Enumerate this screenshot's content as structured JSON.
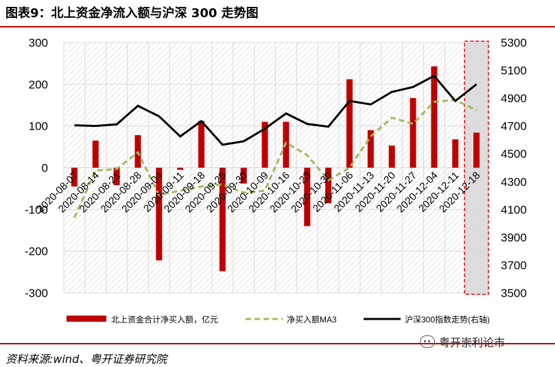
{
  "header": {
    "title": "图表9：北上资金净流入额与沪深 300 走势图"
  },
  "footer": {
    "source": "资料来源:wind、粤开证券研究院",
    "watermark": "粤开崇利论市"
  },
  "chart_data": {
    "type": "bar",
    "categories": [
      "2020-08-07",
      "2020-08-14",
      "2020-08-21",
      "2020-08-28",
      "2020-09-04",
      "2020-09-11",
      "2020-09-18",
      "2020-09-25",
      "2020-09-30",
      "2020-10-09",
      "2020-10-16",
      "2020-10-23",
      "2020-10-30",
      "2020-11-06",
      "2020-11-13",
      "2020-11-20",
      "2020-11-27",
      "2020-12-04",
      "2020-12-11",
      "2020-12-18"
    ],
    "tick_labels": [
      "2020-08-07",
      "2020-08-14",
      "2020-08-21",
      "2020-08-28",
      "2020-09-04",
      "2020-09-11",
      "2020-09-18",
      "2020-09-25",
      "2020-09-30",
      "2020-10-09",
      "2020-10-16",
      "2020-10-23",
      "2020-10-30",
      "2020-11-06",
      "2020-11-13",
      "2020-11-20",
      "2020-11-27",
      "2020-12-04",
      "2020-12-11",
      "2020-12-18"
    ],
    "series": [
      {
        "name": "北上资金合计净买入额，亿元",
        "type": "bar",
        "axis": "left",
        "color": "#c00000",
        "values": [
          -45,
          65,
          -42,
          78,
          -222,
          -5,
          112,
          -248,
          -38,
          110,
          110,
          -140,
          -85,
          212,
          90,
          53,
          167,
          243,
          68,
          84
        ]
      },
      {
        "name": "净买入额MA3",
        "type": "line",
        "axis": "left",
        "dashed": true,
        "color": "#9bbb59",
        "values": [
          -120,
          -7,
          -3,
          37,
          -65,
          -55,
          -45,
          -40,
          -60,
          -55,
          60,
          30,
          -30,
          0,
          75,
          120,
          105,
          158,
          162,
          138
        ]
      },
      {
        "name": "沪深300指数走势(右轴)",
        "type": "line",
        "axis": "right",
        "color": "#000000",
        "values": [
          4705,
          4700,
          4712,
          4845,
          4770,
          4625,
          4735,
          4565,
          4590,
          4680,
          4790,
          4715,
          4695,
          4880,
          4855,
          4945,
          4980,
          5060,
          4880,
          5000
        ]
      }
    ],
    "y_left": {
      "min": -300,
      "max": 300,
      "ticks": [
        300,
        200,
        100,
        0,
        -100,
        -200,
        -300
      ]
    },
    "y_right": {
      "min": 3500,
      "max": 5300,
      "ticks": [
        5300,
        5100,
        4900,
        4700,
        4500,
        4300,
        4100,
        3900,
        3700,
        3500
      ]
    },
    "highlight_index": 19,
    "grid": true,
    "legend_position": "bottom"
  }
}
